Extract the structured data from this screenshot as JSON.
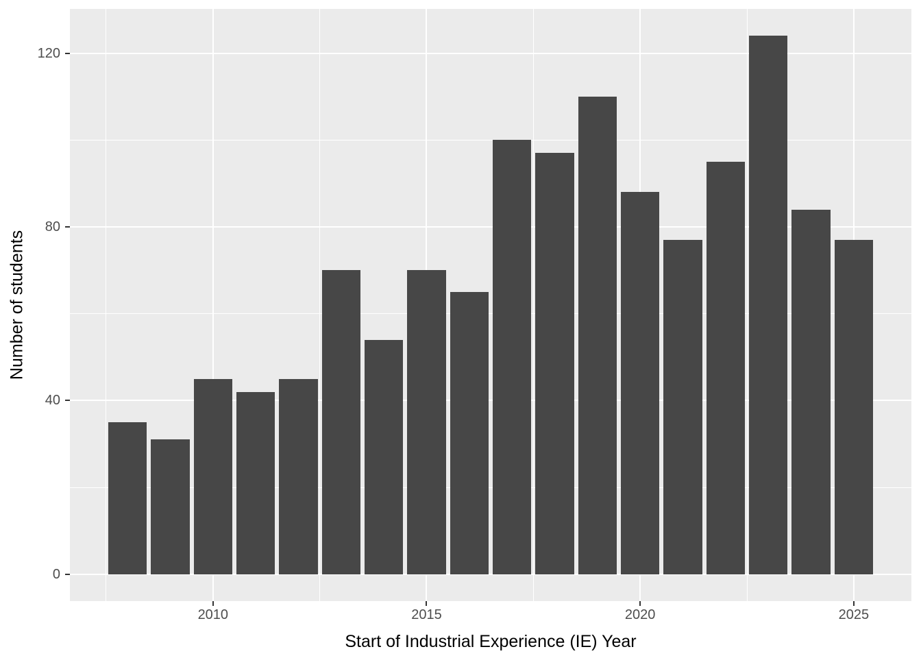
{
  "chart_data": {
    "type": "bar",
    "title": "",
    "xlabel": "Start of Industrial Experience (IE) Year",
    "ylabel": "Number of students",
    "categories": [
      2008,
      2009,
      2010,
      2011,
      2012,
      2013,
      2014,
      2015,
      2016,
      2017,
      2018,
      2019,
      2020,
      2021,
      2022,
      2023,
      2024,
      2025
    ],
    "values": [
      35,
      31,
      45,
      42,
      45,
      70,
      54,
      70,
      65,
      100,
      97,
      110,
      88,
      77,
      95,
      124,
      84,
      77
    ],
    "x_ticks": {
      "values": [
        2010,
        2015,
        2020,
        2025
      ],
      "labels": [
        "2010",
        "2015",
        "2020",
        "2025"
      ]
    },
    "y_ticks": {
      "values": [
        0,
        40,
        80,
        120
      ],
      "labels": [
        "0",
        "40",
        "80",
        "120"
      ]
    },
    "x_minor_grid": [
      2007.5,
      2012.5,
      2017.5,
      2022.5
    ],
    "y_minor_grid": [
      20,
      60,
      100
    ],
    "xlim": [
      2006.65,
      2026.35
    ],
    "ylim": [
      -6.2,
      130.2
    ],
    "bar_relative_width": 0.9,
    "grid": "major and minor gridlines on",
    "legend_position": "none",
    "colors": {
      "bar_fill": "#474747",
      "panel_background": "#ebebeb",
      "gridline": "#ffffff",
      "tick_label": "#4d4d4d",
      "tick_mark": "#333333",
      "axis_title": "#000000",
      "figure_background": "#ffffff"
    }
  }
}
